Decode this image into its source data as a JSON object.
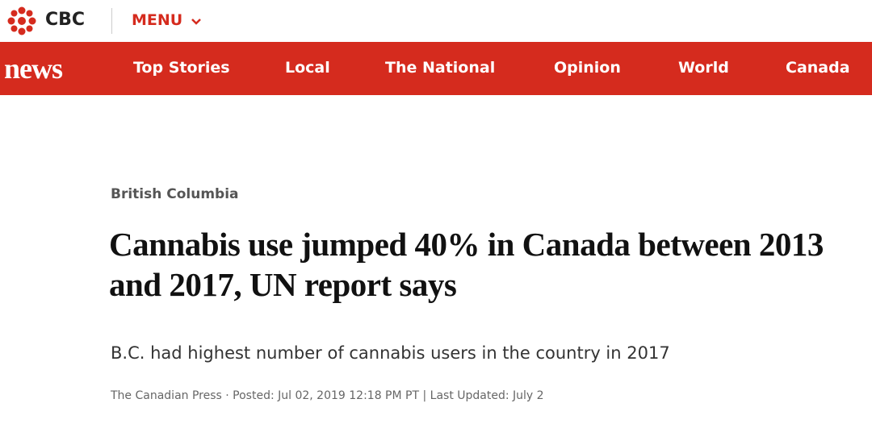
{
  "header": {
    "logo": "CBC",
    "menu": "MENU"
  },
  "nav": {
    "brand": "news",
    "items": [
      "Top Stories",
      "Local",
      "The National",
      "Opinion",
      "World",
      "Canada"
    ]
  },
  "article": {
    "section": "British Columbia",
    "headline": "Cannabis use jumped 40% in Canada between 2013 and 2017, UN report says",
    "subheadline": "B.C. had highest number of cannabis users in the country in 2017",
    "byline": "The Canadian Press · Posted: Jul 02, 2019 12:18 PM PT | Last Updated: July 2"
  }
}
